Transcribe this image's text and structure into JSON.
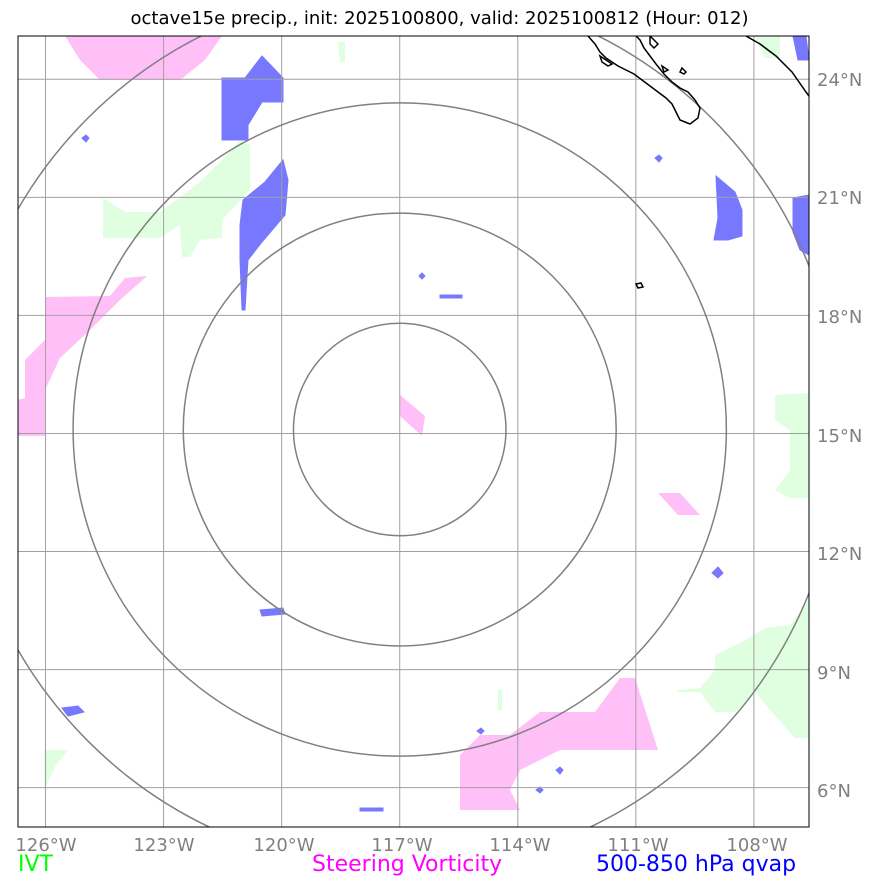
{
  "title": "octave15e precip., init: 2025100800, valid: 2025100812 (Hour: 012)",
  "lon_labels": [
    "126°W",
    "123°W",
    "120°W",
    "117°W",
    "114°W",
    "111°W",
    "108°W"
  ],
  "lat_labels": [
    "24°N",
    "21°N",
    "18°N",
    "15°N",
    "12°N",
    "9°N",
    "6°N"
  ],
  "legend": {
    "ivt": {
      "label": "IVT",
      "color": "#00ff00"
    },
    "vorticity": {
      "label": "Steering Vorticity",
      "color": "#ff00ff"
    },
    "qvap": {
      "label": "500-850 hPa qvap",
      "color": "#0000ff"
    }
  },
  "colors": {
    "ivt_fill": "#e0ffe0",
    "vort_fill": "#ffc0f8",
    "qvap_fill": "#7878ff",
    "grid": "#a0a0a0",
    "rings": "#808080",
    "coast": "#000000"
  },
  "map": {
    "lon_range": [
      -126.7,
      -106.6
    ],
    "lat_range": [
      5.0,
      25.1
    ],
    "center": {
      "lon": -117.0,
      "lat": 15.1
    },
    "rings_deg": [
      2.7,
      5.5,
      8.3,
      11.2
    ]
  }
}
